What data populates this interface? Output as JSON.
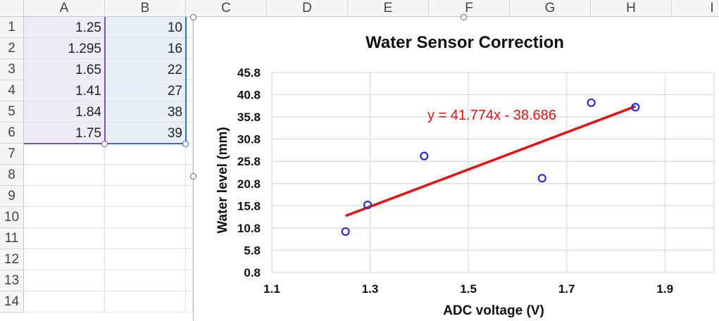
{
  "columns": [
    "A",
    "B",
    "C",
    "D",
    "E",
    "F",
    "G",
    "H",
    "I"
  ],
  "rows": [
    "1",
    "2",
    "3",
    "4",
    "5",
    "6",
    "7",
    "8",
    "9",
    "10",
    "11",
    "12",
    "13",
    "14"
  ],
  "table": {
    "col_a": [
      "1.25",
      "1.295",
      "1.65",
      "1.41",
      "1.84",
      "1.75"
    ],
    "col_b": [
      "10",
      "16",
      "22",
      "27",
      "38",
      "39"
    ]
  },
  "chart_data": {
    "type": "scatter",
    "title": "Water Sensor Correction",
    "xlabel": "ADC voltage (V)",
    "ylabel": "Water level (mm)",
    "xlim": [
      1.1,
      2.0
    ],
    "ylim": [
      0.8,
      45.8
    ],
    "x_ticks": [
      "1.1",
      "1.3",
      "1.5",
      "1.7",
      "1.9"
    ],
    "y_ticks": [
      "0.8",
      "5.8",
      "10.8",
      "15.8",
      "20.8",
      "25.8",
      "30.8",
      "35.8",
      "40.8",
      "45.8"
    ],
    "x_tick_values": [
      1.1,
      1.3,
      1.5,
      1.7,
      1.9
    ],
    "y_tick_values": [
      0.8,
      5.8,
      10.8,
      15.8,
      20.8,
      25.8,
      30.8,
      35.8,
      40.8,
      45.8
    ],
    "points": [
      {
        "x": 1.25,
        "y": 10
      },
      {
        "x": 1.295,
        "y": 16
      },
      {
        "x": 1.65,
        "y": 22
      },
      {
        "x": 1.41,
        "y": 27
      },
      {
        "x": 1.84,
        "y": 38
      },
      {
        "x": 1.75,
        "y": 39
      }
    ],
    "trendline": {
      "label": "y = 41.774x - 38.686",
      "slope": 41.774,
      "intercept": -38.686,
      "x_start": 1.25,
      "x_end": 1.84
    },
    "colors": {
      "marker": "#2b2bd9",
      "trend": "#e81010",
      "grid": "#d9d9d9"
    }
  }
}
